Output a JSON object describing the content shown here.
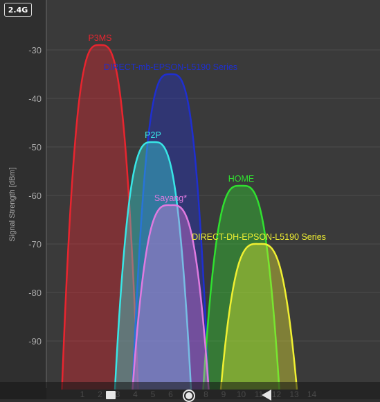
{
  "band_label": "2.4G",
  "chart_data": {
    "type": "area",
    "ylabel": "Signal Strength [dBm]",
    "xlabel": "",
    "ylim": [
      -100,
      -20
    ],
    "xlim": [
      -1,
      15
    ],
    "yticks": [
      -30,
      -40,
      -50,
      -60,
      -70,
      -80,
      -90
    ],
    "xticks": [
      1,
      2,
      3,
      4,
      5,
      6,
      7,
      8,
      9,
      10,
      11,
      12,
      13,
      14
    ],
    "grid": true,
    "series": [
      {
        "name": "P3MS",
        "channel": 2,
        "width": 4,
        "level": -29,
        "color": "#e8252f"
      },
      {
        "name": "DIRECT-mb-EPSON-L5190 Series",
        "channel": 6,
        "width": 4,
        "level": -35,
        "color": "#1f2fd0"
      },
      {
        "name": "P2P",
        "channel": 5,
        "width": 4,
        "level": -49,
        "color": "#38e6e6"
      },
      {
        "name": "HOME",
        "channel": 10,
        "width": 4,
        "level": -58,
        "color": "#30e030"
      },
      {
        "name": "Sayang*",
        "channel": 6,
        "width": 4,
        "level": -62,
        "color": "#e07ae0"
      },
      {
        "name": "DIRECT-DH-EPSON-L5190 Series",
        "channel": 11,
        "width": 4,
        "level": -70,
        "color": "#f0f032"
      }
    ]
  }
}
